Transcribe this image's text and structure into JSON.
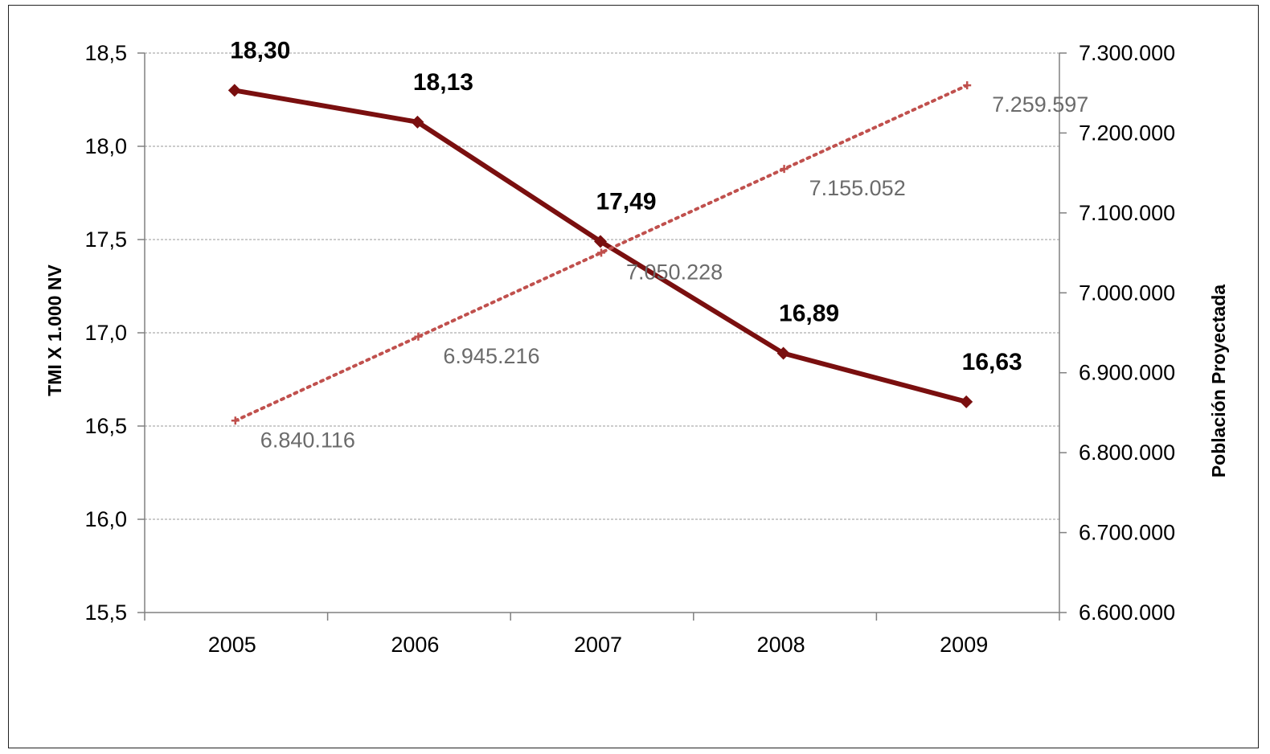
{
  "chart_data": {
    "type": "line",
    "categories": [
      "2005",
      "2006",
      "2007",
      "2008",
      "2009"
    ],
    "series": [
      {
        "axis": "left",
        "values": [
          18.3,
          18.13,
          17.49,
          16.89,
          16.63
        ],
        "labels": [
          "18,30",
          "18,13",
          "17,49",
          "16,89",
          "16,63"
        ],
        "color": "#7a0f0f",
        "style": "solid",
        "marker": "diamond"
      },
      {
        "axis": "right",
        "values": [
          6840116,
          6945216,
          7050228,
          7155052,
          7259597
        ],
        "labels": [
          "6.840.116",
          "6.945.216",
          "7.050.228",
          "7.155.052",
          "7.259.597"
        ],
        "color": "#c0504d",
        "style": "dotted",
        "marker": "plus"
      }
    ],
    "ylabel": "TMI X 1.000 NV",
    "y2label": "Población Proyectada",
    "ylim": [
      15.5,
      18.5
    ],
    "y2lim": [
      6600000,
      7300000
    ],
    "y_ticks": [
      15.5,
      16.0,
      16.5,
      17.0,
      17.5,
      18.0,
      18.5
    ],
    "y_tick_labels": [
      "15,5",
      "16,0",
      "16,5",
      "17,0",
      "17,5",
      "18,0",
      "18,5"
    ],
    "y2_ticks": [
      6600000,
      6700000,
      6800000,
      6900000,
      7000000,
      7100000,
      7200000,
      7300000
    ],
    "y2_tick_labels": [
      "6.600.000",
      "6.700.000",
      "6.800.000",
      "6.900.000",
      "7.000.000",
      "7.100.000",
      "7.200.000",
      "7.300.000"
    ],
    "grid": true,
    "legend": "none"
  }
}
